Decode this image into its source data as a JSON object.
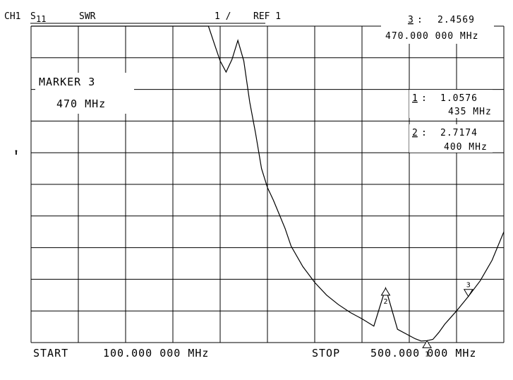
{
  "header": {
    "channel": "CH1",
    "param": "S",
    "param_sub": "11",
    "format": "SWR",
    "scale": "1 /",
    "ref": "REF 1"
  },
  "active_marker": {
    "label": "MARKER 3",
    "freq": "470 MHz"
  },
  "marker_readouts": [
    {
      "num": "3",
      "sep": ":",
      "value": "2.4569",
      "freq": "470.000 000 MHz"
    },
    {
      "num": "1",
      "sep": ":",
      "value": "1.0576",
      "freq": "435 MHz"
    },
    {
      "num": "2",
      "sep": ":",
      "value": "2.7174",
      "freq": "400 MHz"
    }
  ],
  "reference_arrow": "⬆",
  "footer": {
    "start_label": "START",
    "start_value": "100.000 000 MHz",
    "stop_label": "STOP",
    "stop_value": "500.000 000 MHz"
  },
  "chart_data": {
    "type": "line",
    "title": "",
    "xlabel": "",
    "ylabel": "",
    "x_unit": "MHz",
    "xlim": [
      100,
      500
    ],
    "ylim": [
      1,
      11
    ],
    "ref_value": 1,
    "scale_per_div": 1,
    "divisions_x": 10,
    "divisions_y": 10,
    "grid": true,
    "series": [
      {
        "x": [
          100,
          250,
          251,
          255,
          260,
          265,
          270,
          275,
          280,
          285,
          290,
          295,
          300,
          305,
          310,
          315,
          320,
          330,
          340,
          350,
          360,
          370,
          380,
          390,
          400,
          410,
          420,
          425,
          430,
          435,
          440,
          445,
          450,
          460,
          470,
          480,
          490,
          500
        ],
        "y": [
          11,
          11,
          10.9,
          10.45,
          9.9,
          9.55,
          9.95,
          10.55,
          9.9,
          8.6,
          7.6,
          6.5,
          5.9,
          5.5,
          5.05,
          4.6,
          4.05,
          3.4,
          2.9,
          2.5,
          2.2,
          1.95,
          1.75,
          1.52,
          2.72,
          1.42,
          1.22,
          1.12,
          1.05,
          1.06,
          1.1,
          1.32,
          1.58,
          2.0,
          2.46,
          2.95,
          3.6,
          4.5
        ]
      }
    ],
    "markers": [
      {
        "id": "1",
        "x": 435,
        "y": 1.0576,
        "symbol": "up-triangle"
      },
      {
        "id": "2",
        "x": 400,
        "y": 2.7174,
        "symbol": "up-triangle"
      },
      {
        "id": "3",
        "x": 470,
        "y": 2.4569,
        "symbol": "down-triangle"
      }
    ]
  }
}
